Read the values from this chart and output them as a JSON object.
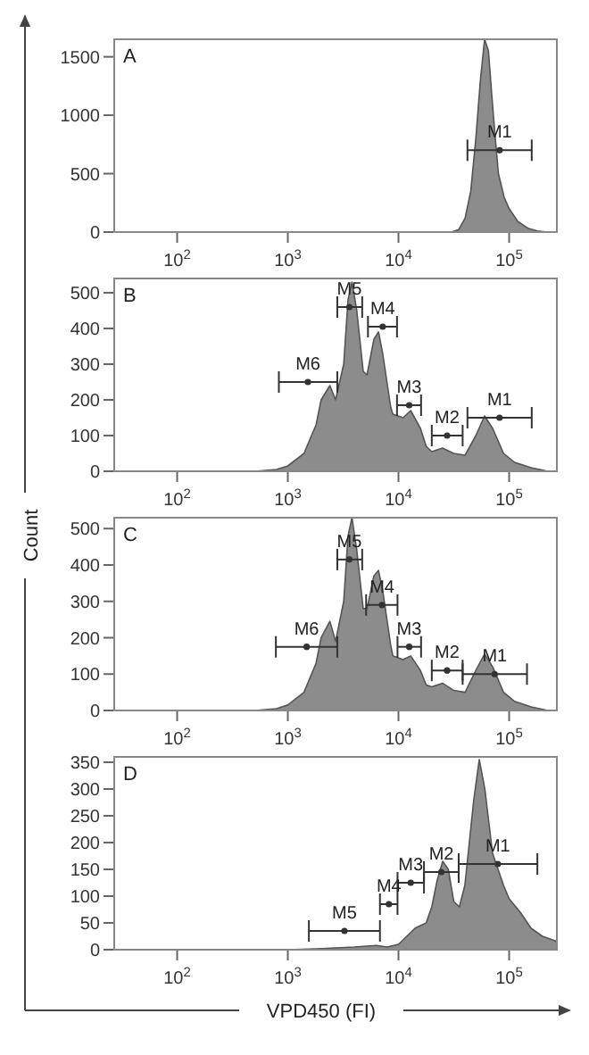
{
  "chart_data": [
    {
      "type": "area",
      "title": "A",
      "log": "x",
      "xlim": [
        27,
        270000
      ],
      "xticks": [
        {
          "value": 100,
          "label": "10$^{2}$"
        },
        {
          "value": 1000,
          "label": "10$^{3}$"
        },
        {
          "value": 10000,
          "label": "10$^{4}$"
        },
        {
          "value": 100000,
          "label": "10$^{5}$"
        }
      ],
      "ylim": [
        0,
        1650
      ],
      "yticks": [
        0,
        500,
        1000,
        1500
      ],
      "series": [
        {
          "color": "#8c8c8c",
          "x": [
            30,
            30000,
            35000,
            40000,
            45000,
            50000,
            55000,
            60000,
            65000,
            70000,
            75000,
            80000,
            90000,
            100000,
            120000,
            150000,
            180000,
            220000
          ],
          "values": [
            0,
            0,
            20,
            120,
            350,
            800,
            1300,
            1650,
            1550,
            1150,
            800,
            500,
            300,
            200,
            90,
            30,
            10,
            0
          ]
        },
        {
          "type": "scatter",
          "color": "#333333",
          "marker": "circle",
          "x": [
            82000
          ],
          "values": [
            700
          ],
          "xerrors": [
            [
              42000,
              160000
            ]
          ]
        }
      ],
      "annotations": [
        {
          "text": "M1",
          "x": 82000,
          "y": 700
        }
      ]
    },
    {
      "type": "area",
      "title": "B",
      "ylabel": "Count",
      "log": "x",
      "xlim": [
        27,
        270000
      ],
      "xticks": [
        {
          "value": 100,
          "label": "10$^{2}$"
        },
        {
          "value": 1000,
          "label": "10$^{3}$"
        },
        {
          "value": 10000,
          "label": "10$^{4}$"
        },
        {
          "value": 100000,
          "label": "10$^{5}$"
        }
      ],
      "ylim": [
        0,
        540
      ],
      "yticks": [
        0,
        100,
        200,
        300,
        400,
        500
      ],
      "series": [
        {
          "color": "#8c8c8c",
          "x": [
            30,
            500,
            790,
            1000,
            1400,
            1800,
            2000,
            2400,
            2700,
            3200,
            3500,
            3800,
            4200,
            4800,
            5200,
            6000,
            6600,
            7200,
            8500,
            8900,
            11000,
            12900,
            15800,
            17800,
            20000,
            25000,
            31600,
            40000,
            50000,
            60000,
            71000,
            89000,
            112000,
            158000,
            224000
          ],
          "values": [
            0,
            0,
            5,
            15,
            50,
            130,
            200,
            240,
            200,
            300,
            480,
            530,
            450,
            280,
            270,
            370,
            390,
            330,
            180,
            160,
            150,
            170,
            120,
            70,
            55,
            65,
            50,
            45,
            100,
            155,
            120,
            50,
            25,
            10,
            0
          ]
        },
        {
          "type": "scatter",
          "color": "#333333",
          "marker": "circle",
          "x": [
            1520,
            3600,
            7200,
            12500,
            27500,
            82000
          ],
          "values": [
            250,
            460,
            405,
            185,
            100,
            150
          ],
          "xerrors": [
            [
              830,
              2800
            ],
            [
              2800,
              4700
            ],
            [
              5300,
              9700
            ],
            [
              9700,
              16000
            ],
            [
              20000,
              38000
            ],
            [
              42000,
              160000
            ]
          ]
        }
      ],
      "annotations": [
        {
          "text": "M6",
          "x": 1520,
          "y": 250
        },
        {
          "text": "M5",
          "x": 3600,
          "y": 460
        },
        {
          "text": "M4",
          "x": 7200,
          "y": 405
        },
        {
          "text": "M3",
          "x": 12500,
          "y": 185
        },
        {
          "text": "M2",
          "x": 27500,
          "y": 100
        },
        {
          "text": "M1",
          "x": 82000,
          "y": 150
        }
      ]
    },
    {
      "type": "area",
      "title": "C",
      "log": "x",
      "xlim": [
        27,
        270000
      ],
      "xticks": [
        {
          "value": 100,
          "label": "10$^{2}$"
        },
        {
          "value": 1000,
          "label": "10$^{3}$"
        },
        {
          "value": 10000,
          "label": "10$^{4}$"
        },
        {
          "value": 100000,
          "label": "10$^{5}$"
        }
      ],
      "ylim": [
        0,
        530
      ],
      "yticks": [
        0,
        100,
        200,
        300,
        400,
        500
      ],
      "series": [
        {
          "color": "#8c8c8c",
          "x": [
            30,
            500,
            790,
            1000,
            1400,
            1800,
            2000,
            2400,
            2700,
            3200,
            3500,
            3800,
            4200,
            4800,
            5200,
            6000,
            6600,
            7200,
            8500,
            8900,
            11000,
            12900,
            15800,
            17800,
            20000,
            25000,
            31600,
            40000,
            50000,
            60000,
            71000,
            89000,
            112000,
            158000,
            224000
          ],
          "values": [
            0,
            0,
            5,
            15,
            50,
            130,
            200,
            245,
            190,
            300,
            480,
            530,
            440,
            280,
            280,
            370,
            385,
            330,
            180,
            150,
            140,
            150,
            110,
            70,
            65,
            75,
            55,
            50,
            110,
            155,
            120,
            50,
            25,
            10,
            0
          ]
        },
        {
          "type": "scatter",
          "color": "#333333",
          "marker": "circle",
          "x": [
            1480,
            3600,
            7100,
            12500,
            27500,
            74000
          ],
          "values": [
            175,
            415,
            290,
            175,
            110,
            100
          ],
          "xerrors": [
            [
              780,
              2800
            ],
            [
              2800,
              4700
            ],
            [
              5100,
              9800
            ],
            [
              9800,
              16000
            ],
            [
              20000,
              38000
            ],
            [
              38000,
              145000
            ]
          ]
        }
      ],
      "annotations": [
        {
          "text": "M6",
          "x": 1480,
          "y": 175
        },
        {
          "text": "M5",
          "x": 3600,
          "y": 415
        },
        {
          "text": "M4",
          "x": 7100,
          "y": 290
        },
        {
          "text": "M3",
          "x": 12500,
          "y": 175
        },
        {
          "text": "M2",
          "x": 27500,
          "y": 110
        },
        {
          "text": "M1",
          "x": 74000,
          "y": 100
        }
      ]
    },
    {
      "type": "area",
      "title": "D",
      "xlabel": "VPD450 (FI)",
      "log": "x",
      "xlim": [
        27,
        270000
      ],
      "xticks": [
        {
          "value": 100,
          "label": "10$^{2}$"
        },
        {
          "value": 1000,
          "label": "10$^{3}$"
        },
        {
          "value": 10000,
          "label": "10$^{4}$"
        },
        {
          "value": 100000,
          "label": "10$^{5}$"
        }
      ],
      "ylim": [
        0,
        360
      ],
      "yticks": [
        0,
        50,
        100,
        150,
        200,
        250,
        300,
        350
      ],
      "series": [
        {
          "color": "#8c8c8c",
          "x": [
            30,
            1000,
            2000,
            4000,
            6300,
            7900,
            10000,
            12600,
            14100,
            15800,
            17800,
            20000,
            22400,
            25100,
            28200,
            31600,
            35500,
            39800,
            47900,
            53700,
            60300,
            70800,
            89100,
            100000,
            126000,
            158000,
            200000,
            251000,
            270000
          ],
          "values": [
            0,
            0,
            2,
            5,
            8,
            5,
            10,
            30,
            40,
            45,
            50,
            80,
            130,
            165,
            150,
            90,
            80,
            120,
            280,
            355,
            300,
            180,
            120,
            95,
            70,
            40,
            25,
            18,
            15
          ]
        },
        {
          "type": "scatter",
          "color": "#333333",
          "marker": "circle",
          "x": [
            3250,
            8200,
            12900,
            24400,
            79000
          ],
          "values": [
            35,
            85,
            125,
            145,
            160
          ],
          "xerrors": [
            [
              1550,
              6800
            ],
            [
              6800,
              9800
            ],
            [
              9800,
              17000
            ],
            [
              17000,
              35000
            ],
            [
              35000,
              180000
            ]
          ]
        }
      ],
      "annotations": [
        {
          "text": "M5",
          "x": 3250,
          "y": 35
        },
        {
          "text": "M4",
          "x": 8200,
          "y": 85
        },
        {
          "text": "M3",
          "x": 12900,
          "y": 125
        },
        {
          "text": "M2",
          "x": 24400,
          "y": 145
        },
        {
          "text": "M1",
          "x": 79000,
          "y": 160
        }
      ]
    }
  ]
}
